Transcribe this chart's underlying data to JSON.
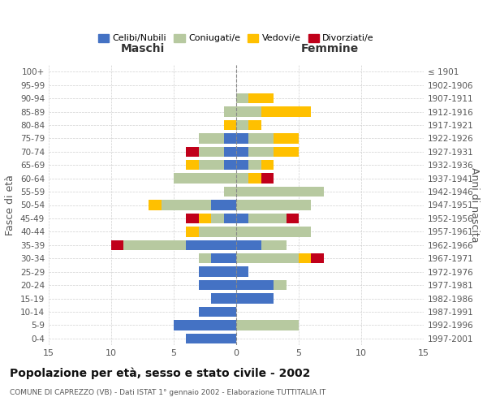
{
  "age_groups": [
    "100+",
    "95-99",
    "90-94",
    "85-89",
    "80-84",
    "75-79",
    "70-74",
    "65-69",
    "60-64",
    "55-59",
    "50-54",
    "45-49",
    "40-44",
    "35-39",
    "30-34",
    "25-29",
    "20-24",
    "15-19",
    "10-14",
    "5-9",
    "0-4"
  ],
  "birth_years": [
    "≤ 1901",
    "1902-1906",
    "1907-1911",
    "1912-1916",
    "1917-1921",
    "1922-1926",
    "1927-1931",
    "1932-1936",
    "1937-1941",
    "1942-1946",
    "1947-1951",
    "1952-1956",
    "1957-1961",
    "1962-1966",
    "1967-1971",
    "1972-1976",
    "1977-1981",
    "1982-1986",
    "1987-1991",
    "1992-1996",
    "1997-2001"
  ],
  "males": {
    "celibi": [
      0,
      0,
      0,
      0,
      0,
      1,
      1,
      1,
      0,
      0,
      2,
      1,
      0,
      4,
      2,
      3,
      3,
      2,
      3,
      5,
      4
    ],
    "coniugati": [
      0,
      0,
      0,
      1,
      0,
      2,
      2,
      2,
      5,
      1,
      4,
      1,
      3,
      5,
      1,
      0,
      0,
      0,
      0,
      0,
      0
    ],
    "vedovi": [
      0,
      0,
      0,
      0,
      1,
      0,
      0,
      1,
      0,
      0,
      1,
      1,
      1,
      0,
      0,
      0,
      0,
      0,
      0,
      0,
      0
    ],
    "divorziati": [
      0,
      0,
      0,
      0,
      0,
      0,
      1,
      0,
      0,
      0,
      0,
      1,
      0,
      1,
      0,
      0,
      0,
      0,
      0,
      0,
      0
    ]
  },
  "females": {
    "nubili": [
      0,
      0,
      0,
      0,
      0,
      1,
      1,
      1,
      0,
      0,
      0,
      1,
      0,
      2,
      0,
      1,
      3,
      3,
      0,
      0,
      0
    ],
    "coniugate": [
      0,
      0,
      1,
      2,
      1,
      2,
      2,
      1,
      1,
      7,
      6,
      3,
      6,
      2,
      5,
      0,
      1,
      0,
      0,
      5,
      0
    ],
    "vedove": [
      0,
      0,
      2,
      4,
      1,
      2,
      2,
      1,
      1,
      0,
      0,
      0,
      0,
      0,
      1,
      0,
      0,
      0,
      0,
      0,
      0
    ],
    "divorziate": [
      0,
      0,
      0,
      0,
      0,
      0,
      0,
      0,
      1,
      0,
      0,
      1,
      0,
      0,
      1,
      0,
      0,
      0,
      0,
      0,
      0
    ]
  },
  "colors": {
    "celibi": "#4472c4",
    "coniugati": "#b7c9a0",
    "vedovi": "#ffc000",
    "divorziati": "#c0001a"
  },
  "xlim": 15,
  "title": "Popolazione per età, sesso e stato civile - 2002",
  "subtitle": "COMUNE DI CAPREZZO (VB) - Dati ISTAT 1° gennaio 2002 - Elaborazione TUTTITALIA.IT",
  "ylabel_left": "Fasce di età",
  "ylabel_right": "Anni di nascita",
  "xlabel_left": "Maschi",
  "xlabel_right": "Femmine",
  "legend_labels": [
    "Celibi/Nubili",
    "Coniugati/e",
    "Vedovi/e",
    "Divorziati/e"
  ],
  "bg_color": "#ffffff",
  "grid_color": "#cccccc"
}
